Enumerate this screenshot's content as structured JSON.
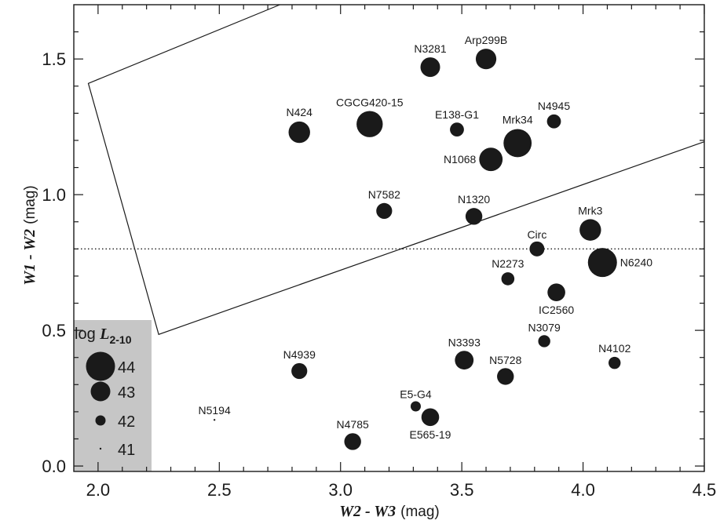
{
  "chart_data": {
    "type": "scatter",
    "xlabel": {
      "text": "W2 - W3",
      "unit": "(mag)"
    },
    "ylabel": {
      "text": "W1 - W2",
      "unit": "(mag)"
    },
    "xlim": [
      1.9,
      4.5
    ],
    "ylim": [
      -0.02,
      1.7
    ],
    "xticks": [
      {
        "value": 2.0,
        "label": "2.0"
      },
      {
        "value": 2.5,
        "label": "2.5"
      },
      {
        "value": 3.0,
        "label": "3.0"
      },
      {
        "value": 3.5,
        "label": "3.5"
      },
      {
        "value": 4.0,
        "label": "4.0"
      },
      {
        "value": 4.5,
        "label": "4.5"
      }
    ],
    "yticks": [
      {
        "value": 0.0,
        "label": "0.0"
      },
      {
        "value": 0.5,
        "label": "0.5"
      },
      {
        "value": 1.0,
        "label": "1.0"
      },
      {
        "value": 1.5,
        "label": "1.5"
      }
    ],
    "grid": false,
    "reference_line": {
      "y": 0.8,
      "style": "dotted"
    },
    "wedge_region": [
      [
        1.96,
        1.41
      ],
      [
        2.75,
        1.7
      ],
      [
        4.5,
        1.19
      ],
      [
        4.5,
        1.7
      ],
      [
        2.25,
        0.48
      ]
    ],
    "wedge_path": [
      [
        2.75,
        1.7
      ],
      [
        1.96,
        1.41
      ],
      [
        2.25,
        0.485
      ],
      [
        4.5,
        1.195
      ]
    ],
    "size_variable": {
      "name": "log L2-10"
    },
    "points": [
      {
        "name": "Arp299B",
        "x": 3.6,
        "y": 1.5,
        "logL": 43.1
      },
      {
        "name": "N3281",
        "x": 3.37,
        "y": 1.47,
        "logL": 43.0
      },
      {
        "name": "N424",
        "x": 2.83,
        "y": 1.23,
        "logL": 43.2
      },
      {
        "name": "CGCG420-15",
        "x": 3.12,
        "y": 1.26,
        "logL": 43.7
      },
      {
        "name": "E138-G1",
        "x": 3.48,
        "y": 1.24,
        "logL": 42.4
      },
      {
        "name": "N4945",
        "x": 3.88,
        "y": 1.27,
        "logL": 42.4
      },
      {
        "name": "Mrk34",
        "x": 3.73,
        "y": 1.19,
        "logL": 43.9
      },
      {
        "name": "N1068",
        "x": 3.62,
        "y": 1.13,
        "logL": 43.4
      },
      {
        "name": "N7582",
        "x": 3.18,
        "y": 0.94,
        "logL": 42.6
      },
      {
        "name": "N1320",
        "x": 3.55,
        "y": 0.92,
        "logL": 42.7
      },
      {
        "name": "Mrk3",
        "x": 4.03,
        "y": 0.87,
        "logL": 43.2
      },
      {
        "name": "Circ",
        "x": 3.81,
        "y": 0.8,
        "logL": 42.5
      },
      {
        "name": "N6240",
        "x": 4.08,
        "y": 0.75,
        "logL": 44.0
      },
      {
        "name": "N2273",
        "x": 3.69,
        "y": 0.69,
        "logL": 42.3
      },
      {
        "name": "IC2560",
        "x": 3.89,
        "y": 0.64,
        "logL": 42.8
      },
      {
        "name": "N3079",
        "x": 3.84,
        "y": 0.46,
        "logL": 42.2
      },
      {
        "name": "N4102",
        "x": 4.13,
        "y": 0.38,
        "logL": 42.2
      },
      {
        "name": "N3393",
        "x": 3.51,
        "y": 0.39,
        "logL": 42.9
      },
      {
        "name": "N5728",
        "x": 3.68,
        "y": 0.33,
        "logL": 42.7
      },
      {
        "name": "N4939",
        "x": 2.83,
        "y": 0.35,
        "logL": 42.6
      },
      {
        "name": "E5-G4",
        "x": 3.31,
        "y": 0.22,
        "logL": 42.0
      },
      {
        "name": "E565-19",
        "x": 3.37,
        "y": 0.18,
        "logL": 42.8
      },
      {
        "name": "N4785",
        "x": 3.05,
        "y": 0.09,
        "logL": 42.7
      },
      {
        "name": "N5194",
        "x": 2.48,
        "y": 0.17,
        "logL": 40.9
      }
    ],
    "legend": {
      "placement": "bottom-left",
      "title": "log L2-10",
      "entries": [
        {
          "label": "44",
          "logL": 44
        },
        {
          "label": "43",
          "logL": 43
        },
        {
          "label": "42",
          "logL": 42
        },
        {
          "label": "41",
          "logL": 41
        }
      ],
      "background": "#c6c6c6"
    },
    "colors": {
      "markers": "#1a1a1a",
      "lines": "#1a1a1a"
    }
  }
}
